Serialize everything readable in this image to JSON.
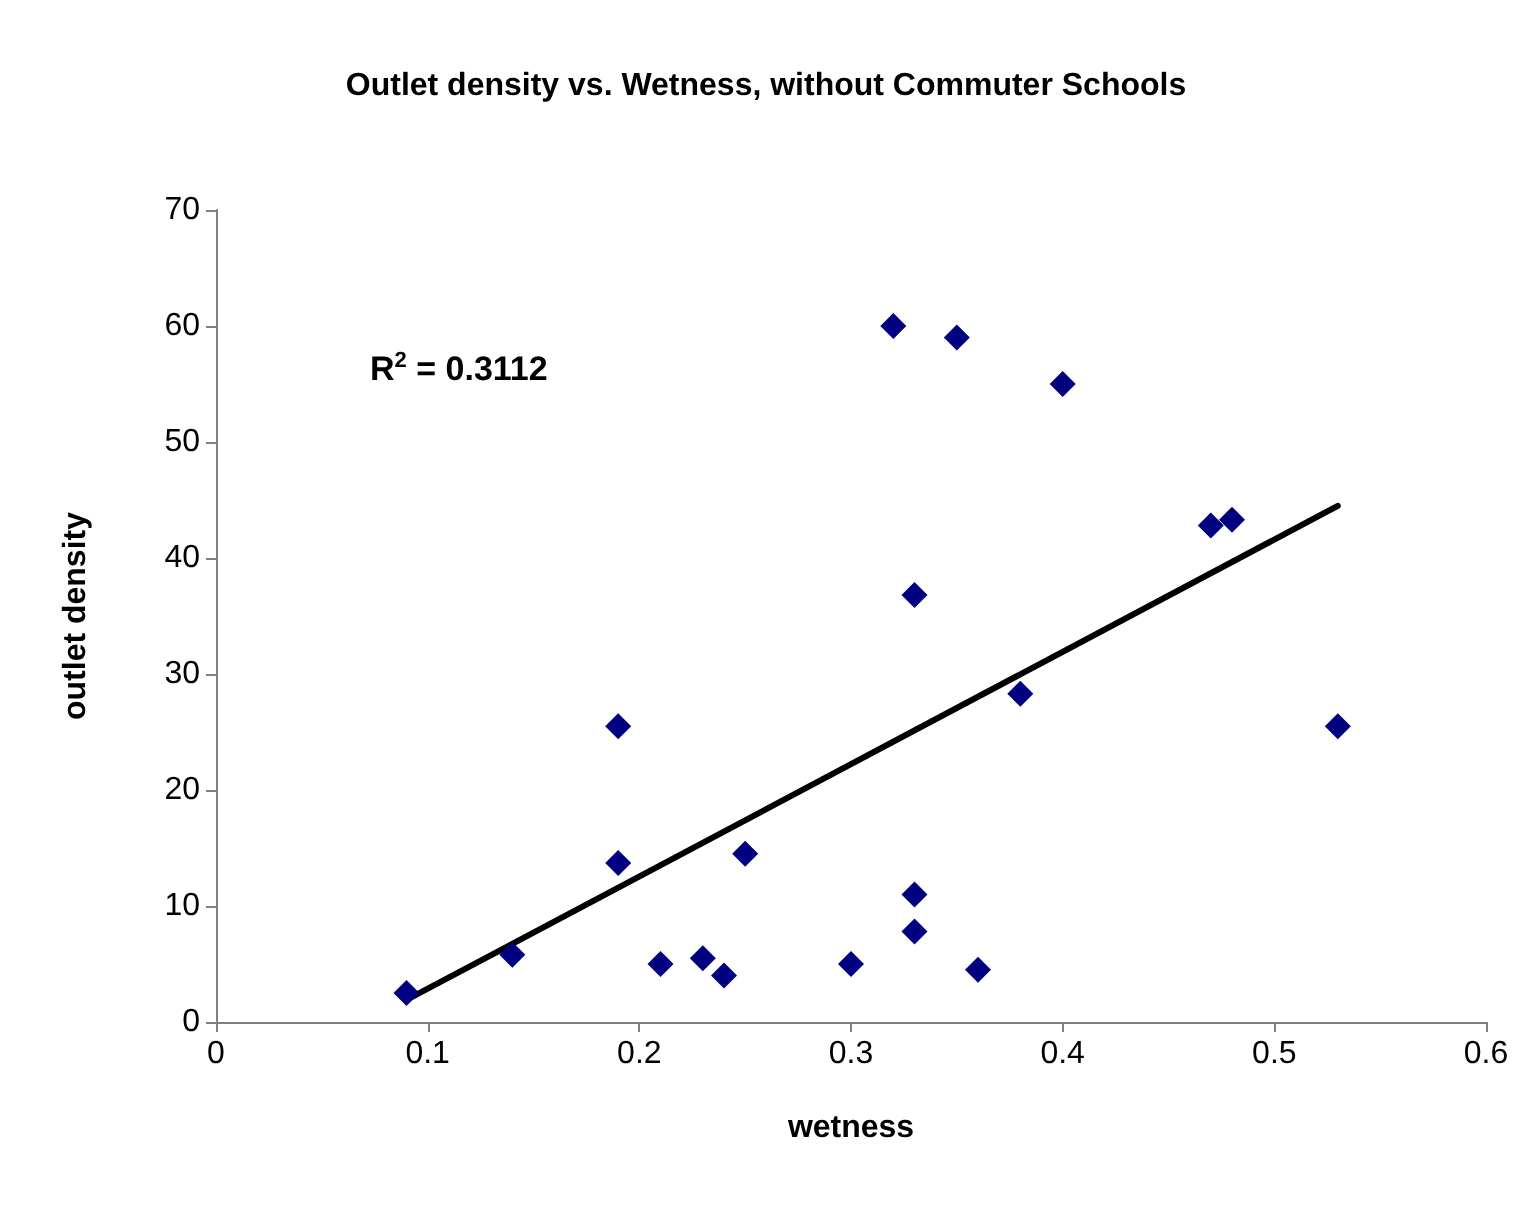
{
  "chart_data": {
    "type": "scatter",
    "title": "Outlet density vs. Wetness, without Commuter Schools",
    "xlabel": "wetness",
    "ylabel": "outlet density",
    "annotations": [
      "R$^{2}$ = 0.3112"
    ],
    "xlim": [
      0,
      0.6
    ],
    "xticks": [
      0,
      0.1,
      0.2,
      0.3,
      0.4,
      0.5,
      0.6
    ],
    "ylim": [
      0,
      70
    ],
    "yticks": [
      0,
      10,
      20,
      30,
      40,
      50,
      60,
      70
    ],
    "grid": false,
    "marker": "diamond",
    "series": [
      {
        "color": "#000080",
        "x": [
          0.09,
          0.14,
          0.19,
          0.19,
          0.21,
          0.23,
          0.24,
          0.25,
          0.3,
          0.32,
          0.33,
          0.33,
          0.33,
          0.35,
          0.36,
          0.38,
          0.4,
          0.47,
          0.48,
          0.53
        ],
        "values": [
          2.5,
          5.8,
          25.5,
          13.7,
          5,
          5.5,
          4,
          14.5,
          5,
          60,
          36.8,
          11,
          7.8,
          59,
          4.5,
          28.3,
          55,
          42.8,
          43.3,
          25.5
        ]
      },
      {
        "type": "line",
        "color": "#000000",
        "marker": "none",
        "line_style": "solid",
        "x": [
          0.09,
          0.53
        ],
        "values": [
          1.9,
          44.5
        ]
      }
    ]
  }
}
